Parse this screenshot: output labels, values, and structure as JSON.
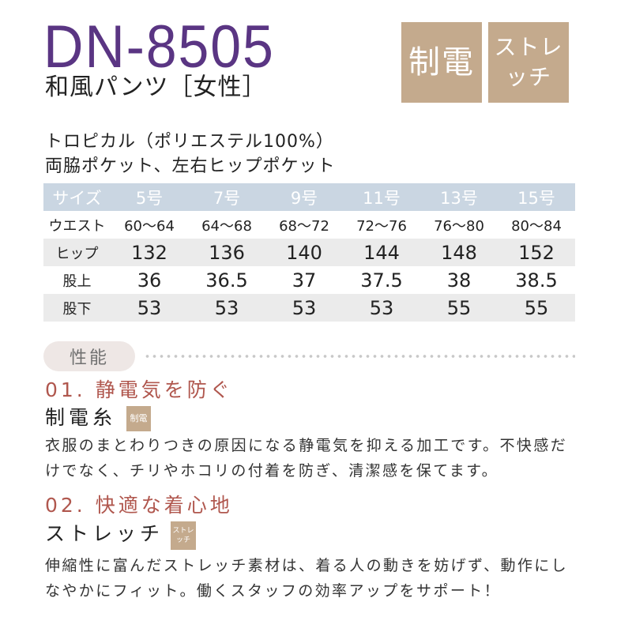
{
  "product": {
    "code": "DN-8505",
    "name": "和風パンツ［女性］"
  },
  "badges": [
    {
      "lines": [
        "制電"
      ]
    },
    {
      "lines": [
        "ストレ",
        "ッチ"
      ]
    }
  ],
  "material": "トロピカル（ポリエステル100%）",
  "pockets": "両脇ポケット、左右ヒップポケット",
  "size_table": {
    "header_label": "サイズ",
    "sizes": [
      "5号",
      "7号",
      "9号",
      "11号",
      "13号",
      "15号"
    ],
    "rows": [
      {
        "label": "ウエスト",
        "values": [
          "60～64",
          "64～68",
          "68～72",
          "72～76",
          "76～80",
          "80～84"
        ]
      },
      {
        "label": "ヒップ",
        "values": [
          "132",
          "136",
          "140",
          "144",
          "148",
          "152"
        ]
      },
      {
        "label": "股上",
        "values": [
          "36",
          "36.5",
          "37",
          "37.5",
          "38",
          "38.5"
        ]
      },
      {
        "label": "股下",
        "values": [
          "53",
          "53",
          "53",
          "53",
          "55",
          "55"
        ]
      }
    ]
  },
  "performance": {
    "section_label": "性能",
    "features": [
      {
        "heading": "01. 静電気を防ぐ",
        "name": "制電糸",
        "badge_lines": [
          "制電"
        ],
        "description_lines": [
          "衣服のまとわりつきの原因になる静電気を抑える加工です。不快感だ",
          "けでなく、チリやホコリの付着を防ぎ、清潔感を保てます。"
        ]
      },
      {
        "heading": "02. 快適な着心地",
        "name": "ストレッチ",
        "badge_lines": [
          "ストレ",
          "ッチ"
        ],
        "description_lines": [
          "伸縮性に富んだストレッチ素材は、着る人の動きを妨げず、動作にし",
          "なやかにフィット。働くスタッフの効率アップをサポート！"
        ]
      }
    ]
  },
  "colors": {
    "title": "#5a3583",
    "badge": "#c4aa8d",
    "table_header": "#cad6e2",
    "table_alt_row": "#ebebeb",
    "feature_heading": "#b0574e",
    "section_pill": "#eee7e5"
  }
}
